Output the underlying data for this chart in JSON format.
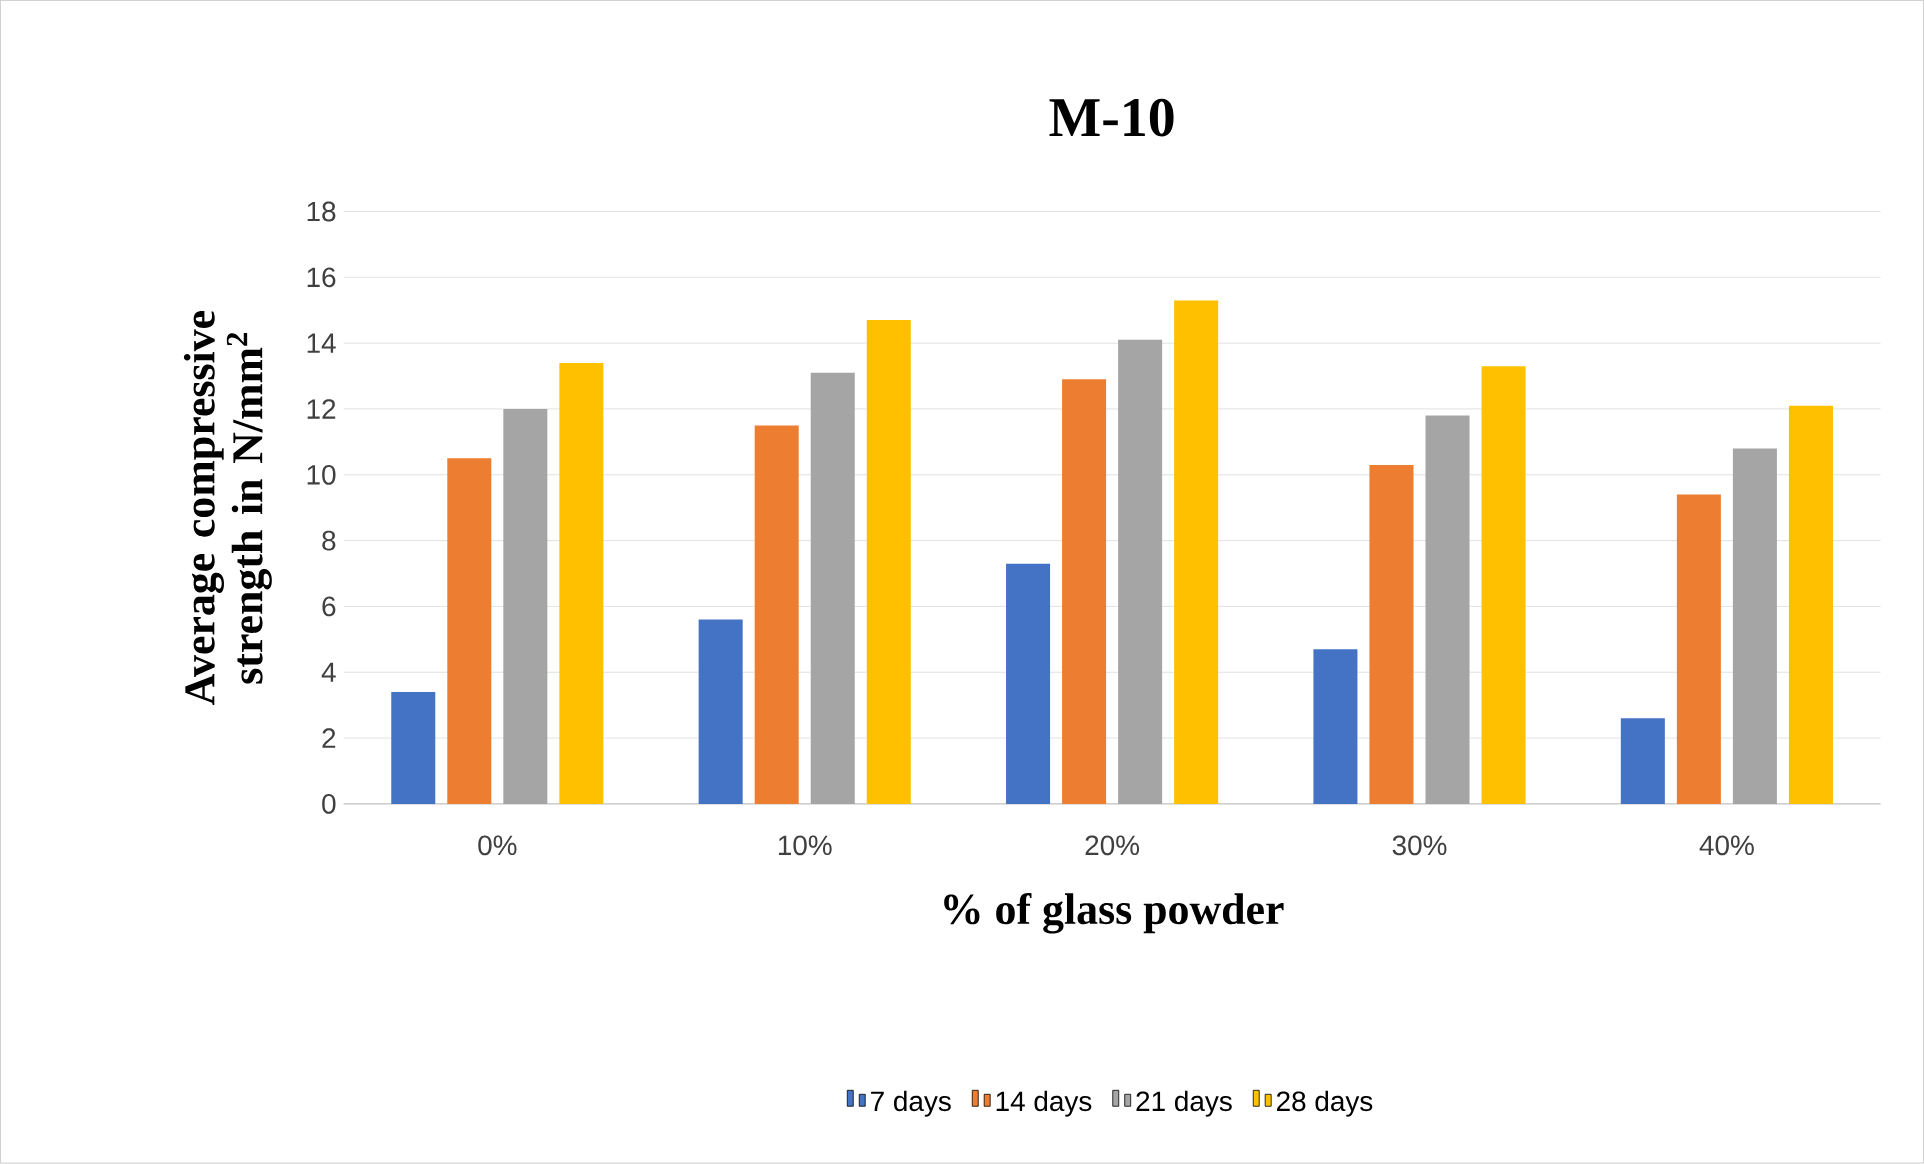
{
  "chart_data": {
    "type": "bar",
    "title": "M-10",
    "xlabel": "% of glass powder",
    "ylabel": "Average compressive strength in N/mm$^{2}$",
    "categories": [
      "0%",
      "10%",
      "20%",
      "30%",
      "40%"
    ],
    "series": [
      {
        "name": "7 days",
        "color": "#4472c4",
        "values": [
          3.4,
          5.6,
          7.3,
          4.7,
          2.6
        ]
      },
      {
        "name": "14 days",
        "color": "#ed7d31",
        "values": [
          10.5,
          11.5,
          12.9,
          10.3,
          9.4
        ]
      },
      {
        "name": "21 days",
        "color": "#a5a5a5",
        "values": [
          12.0,
          13.1,
          14.1,
          11.8,
          10.8
        ]
      },
      {
        "name": "28 days",
        "color": "#ffc000",
        "values": [
          13.4,
          14.7,
          15.3,
          13.3,
          12.1
        ]
      }
    ],
    "ylim": [
      0,
      18
    ],
    "yticks": [
      0,
      2,
      4,
      6,
      8,
      10,
      12,
      14,
      16,
      18
    ],
    "grid": "y",
    "legend": "bottom"
  }
}
